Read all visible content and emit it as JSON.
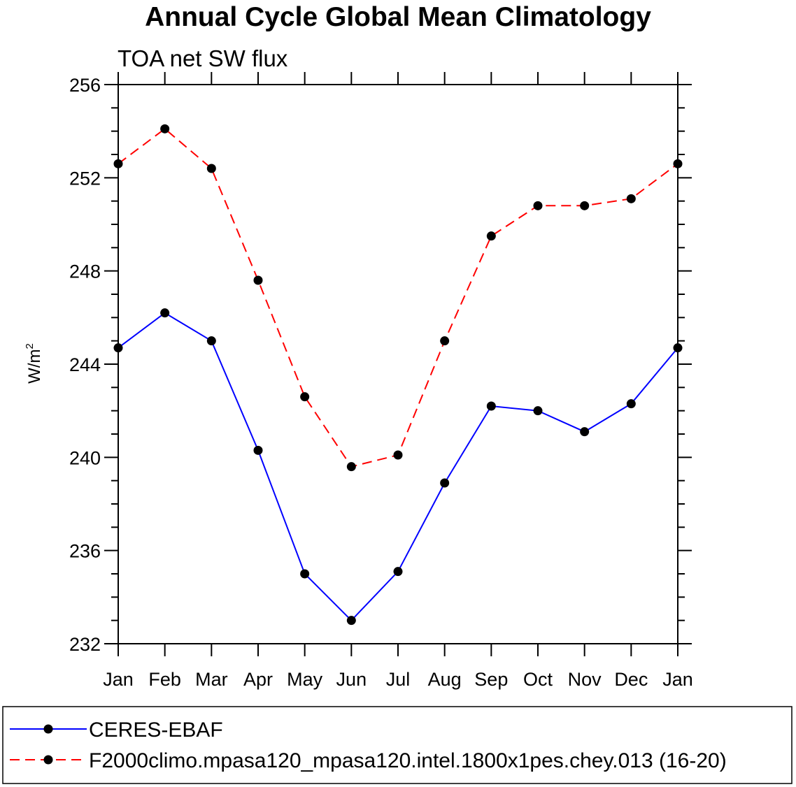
{
  "chart_data": {
    "type": "line",
    "title": "Annual Cycle Global Mean Climatology",
    "subtitle": "TOA net SW flux",
    "ylabel": "W/m",
    "ylabel_sup": "2",
    "xlabel": "",
    "categories": [
      "Jan",
      "Feb",
      "Mar",
      "Apr",
      "May",
      "Jun",
      "Jul",
      "Aug",
      "Sep",
      "Oct",
      "Nov",
      "Dec",
      "Jan"
    ],
    "ylim": [
      232,
      256
    ],
    "yticks": [
      232,
      236,
      240,
      244,
      248,
      252,
      256
    ],
    "yticks_label": [
      "232",
      "236",
      "240",
      "244",
      "248",
      "252",
      "256"
    ],
    "series": [
      {
        "name": "CERES-EBAF",
        "color": "#0000ff",
        "dash": "solid",
        "marker": "filled-circle",
        "values": [
          244.7,
          246.2,
          245.0,
          240.3,
          235.0,
          233.0,
          235.1,
          238.9,
          242.2,
          242.0,
          241.1,
          242.3,
          244.7
        ]
      },
      {
        "name": "F2000climo.mpasa120_mpasa120.intel.1800x1pes.chey.013 (16-20)",
        "color": "#ff0000",
        "dash": "dashed",
        "marker": "filled-circle",
        "values": [
          252.6,
          254.1,
          252.4,
          247.6,
          242.6,
          239.6,
          240.1,
          245.0,
          249.5,
          250.8,
          250.8,
          251.1,
          252.6
        ]
      }
    ],
    "legend": {
      "placement": "bottom",
      "entries": [
        "CERES-EBAF",
        "F2000climo.mpasa120_mpasa120.intel.1800x1pes.chey.013 (16-20)"
      ]
    },
    "grid": false
  }
}
